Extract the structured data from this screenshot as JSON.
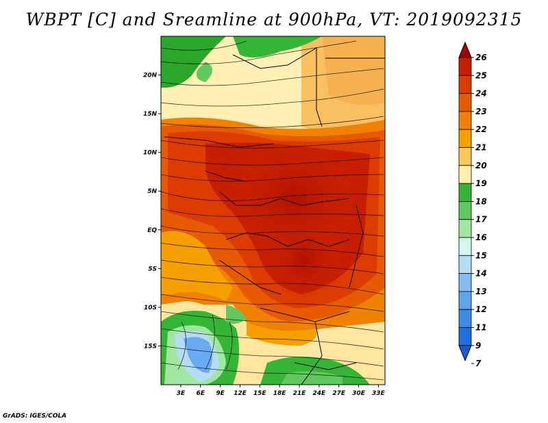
{
  "title": "WBPT [C] and Sreamline at 900hPa, VT: 2019092315",
  "credit": "GrADS: IGES/COLA",
  "map": {
    "lat_labels": [
      "20N",
      "15N",
      "10N",
      "5N",
      "EQ",
      "5S",
      "10S",
      "15S"
    ],
    "lon_labels": [
      "3E",
      "6E",
      "9E",
      "12E",
      "15E",
      "18E",
      "21E",
      "24E",
      "27E",
      "30E",
      "33E"
    ],
    "lat_values": [
      20,
      15,
      10,
      5,
      0,
      -5,
      -10,
      -15
    ],
    "lon_values": [
      3,
      6,
      9,
      12,
      15,
      18,
      21,
      24,
      27,
      30,
      33
    ],
    "lat_range": [
      -20,
      25
    ],
    "lon_range": [
      0,
      34
    ]
  },
  "colorbar": {
    "levels": [
      "26",
      "25",
      "24",
      "23",
      "22",
      "21",
      "20",
      "19",
      "18",
      "17",
      "16",
      "15",
      "14",
      "13",
      "12",
      "11",
      "9",
      "7"
    ],
    "colors": [
      "#a50000",
      "#c81e00",
      "#dc3c00",
      "#e65a00",
      "#f08200",
      "#f5a000",
      "#fac85a",
      "#fff0aa",
      "#35b535",
      "#5fc85f",
      "#a0e6a0",
      "#d2f5f0",
      "#b4dcf5",
      "#82bef0",
      "#5fa5eb",
      "#3c8ce6",
      "#1e6edc",
      "#1e5ad2"
    ]
  }
}
